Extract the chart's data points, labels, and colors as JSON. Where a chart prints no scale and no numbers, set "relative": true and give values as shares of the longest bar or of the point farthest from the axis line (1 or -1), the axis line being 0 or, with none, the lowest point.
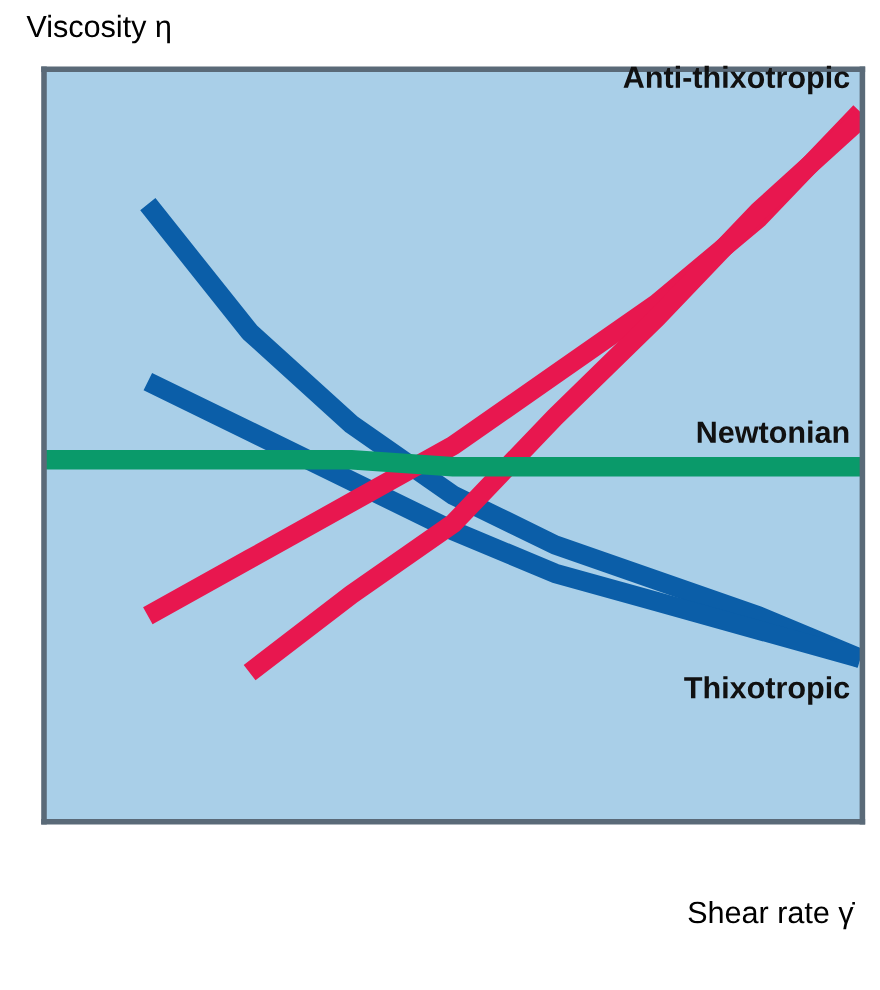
{
  "chart_data": {
    "type": "line",
    "relative": true,
    "xlabel": "Shear rate γ̇",
    "ylabel": "Viscosity η",
    "categories": [
      null,
      null,
      null,
      null,
      null,
      null,
      null,
      null,
      null
    ],
    "series": [
      {
        "color": "#0b5ea8",
        "values": [
          null,
          0.87,
          0.69,
          0.56,
          0.46,
          0.39,
          0.34,
          0.29,
          0.23
        ]
      },
      {
        "name": "Thixotropic",
        "color": "#0b5ea8",
        "values": [
          null,
          0.62,
          0.55,
          0.48,
          0.41,
          0.35,
          0.31,
          0.27,
          0.23
        ]
      },
      {
        "name": "Anti-thixotropic",
        "color": "#e8174f",
        "values": [
          null,
          0.29,
          0.37,
          0.45,
          0.53,
          0.63,
          0.73,
          0.85,
          1.0
        ]
      },
      {
        "color": "#e8174f",
        "values": [
          null,
          null,
          0.21,
          0.32,
          0.42,
          0.57,
          0.71,
          0.86,
          0.99
        ]
      },
      {
        "name": "Newtonian",
        "color": "#0a9a6a",
        "values": [
          0.51,
          0.51,
          0.51,
          0.51,
          0.5,
          0.5,
          0.5,
          0.5,
          0.5
        ]
      }
    ],
    "legend": false,
    "marker": "none",
    "line_style": "solid"
  }
}
